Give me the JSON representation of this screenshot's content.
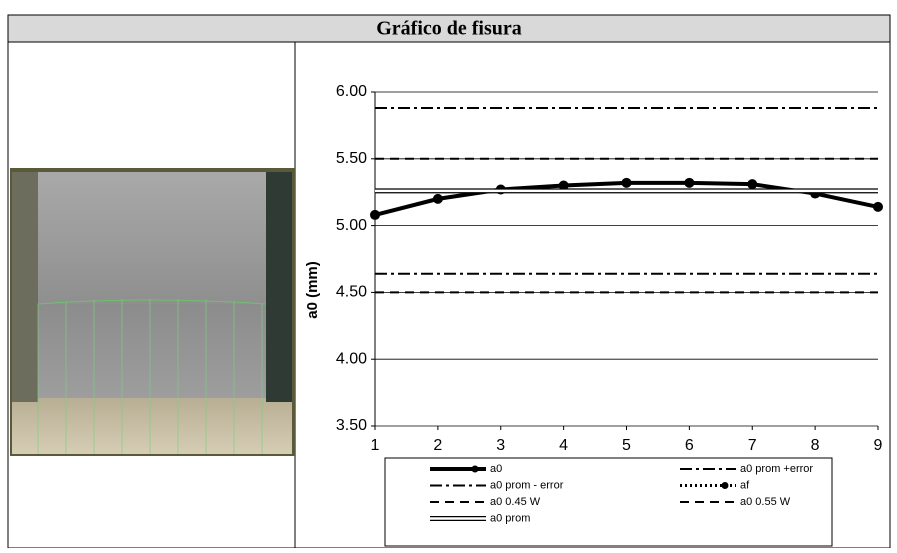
{
  "header": {
    "title": "Gráfico de fisura"
  },
  "chart_data": {
    "type": "line",
    "y_label": "a0 (mm)",
    "x": [
      1,
      2,
      3,
      4,
      5,
      6,
      7,
      8,
      9
    ],
    "xlim": [
      1,
      9
    ],
    "xticks": [
      1,
      2,
      3,
      4,
      5,
      6,
      7,
      8,
      9
    ],
    "ylim": [
      3.5,
      6
    ],
    "yticks": [
      {
        "value": 3.5,
        "label": "3.50"
      },
      {
        "value": 4,
        "label": "4.00"
      },
      {
        "value": 4.5,
        "label": "4.50"
      },
      {
        "value": 5,
        "label": "5.00"
      },
      {
        "value": 5.5,
        "label": "5.50"
      },
      {
        "value": 6,
        "label": "6.00"
      }
    ],
    "grid": true,
    "series": [
      {
        "name": "a0",
        "color": "#000000",
        "style": "solid-markers",
        "values": [
          5.08,
          5.2,
          5.27,
          5.3,
          5.32,
          5.32,
          5.31,
          5.24,
          5.14
        ]
      },
      {
        "name": "a0 prom +error",
        "color": "#000000",
        "style": "dashdot",
        "value": 5.88
      },
      {
        "name": "a0 prom - error",
        "color": "#000000",
        "style": "dashdot",
        "value": 4.64
      },
      {
        "name": "af",
        "color": "#000000",
        "style": "dotted-markers",
        "values": [
          null,
          null,
          null,
          null,
          null,
          null,
          null,
          null,
          null
        ]
      },
      {
        "name": "a0 0.45 W",
        "color": "#000000",
        "style": "dashed",
        "value": 4.5
      },
      {
        "name": "a0 0.55 W",
        "color": "#000000",
        "style": "dashed",
        "value": 5.5
      },
      {
        "name": "a0 prom",
        "color": "#000000",
        "style": "double",
        "value": 5.26
      }
    ]
  }
}
